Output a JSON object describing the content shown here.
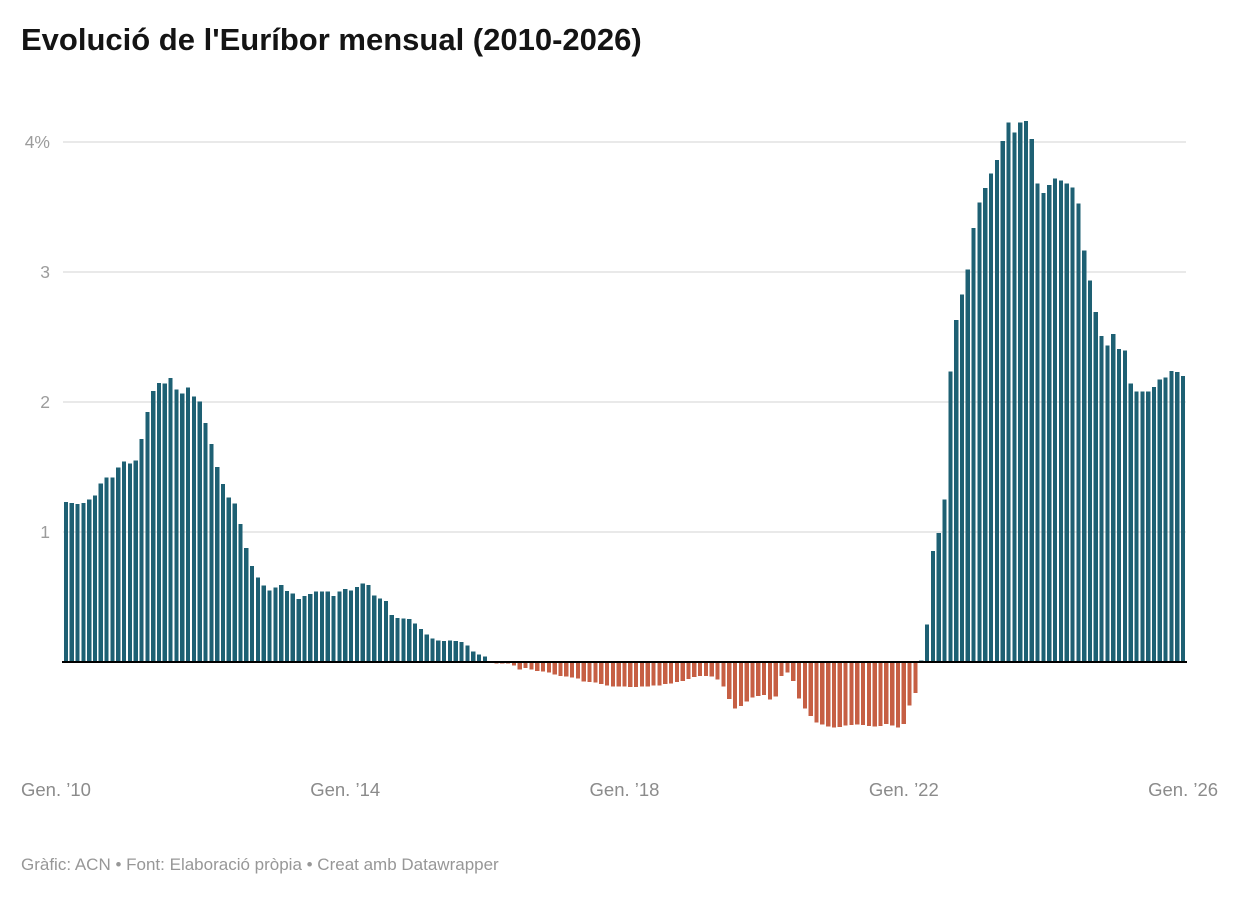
{
  "title": "Evolució de l'Euríbor mensual (2010-2026)",
  "footer": "Gràfic: ACN • Font: Elaboració pròpia • Creat amb Datawrapper",
  "chart_data": {
    "type": "bar",
    "title": "Evolució de l'Euríbor mensual (2010-2026)",
    "unit": "%",
    "xlabel": "",
    "ylabel": "",
    "x_start": "2010-01",
    "x_end": "2026-01",
    "months_per_bar": 1,
    "ylim": [
      -0.55,
      4.2
    ],
    "grid": true,
    "legend_position": "none",
    "y_ticks": [
      {
        "value": 4,
        "label": "4%"
      },
      {
        "value": 3,
        "label": "3"
      },
      {
        "value": 2,
        "label": "2"
      },
      {
        "value": 1,
        "label": "1"
      }
    ],
    "x_ticks": [
      {
        "month_index": 0,
        "label": "Gen. ’10",
        "align": "left"
      },
      {
        "month_index": 48,
        "label": "Gen. ’14",
        "align": "center"
      },
      {
        "month_index": 96,
        "label": "Gen. ’18",
        "align": "center"
      },
      {
        "month_index": 144,
        "label": "Gen. ’22",
        "align": "center"
      },
      {
        "month_index": 192,
        "label": "Gen. ’26",
        "align": "center"
      }
    ],
    "colors": {
      "positive_bar": "#1e6073",
      "negative_bar": "#c65f44",
      "gridline": "#e2e2e2",
      "baseline": "#000000",
      "y_tick_label": "#9c9c9c",
      "x_tick_label": "#8b8b8b",
      "title_text": "#141414",
      "footer_text": "#979797"
    },
    "series": [
      {
        "name": "Euríbor mensual (%)",
        "values": [
          1.232,
          1.225,
          1.215,
          1.225,
          1.249,
          1.281,
          1.373,
          1.421,
          1.42,
          1.495,
          1.541,
          1.526,
          1.55,
          1.714,
          1.924,
          2.086,
          2.147,
          2.144,
          2.183,
          2.097,
          2.067,
          2.11,
          2.044,
          2.004,
          1.837,
          1.678,
          1.499,
          1.368,
          1.266,
          1.219,
          1.061,
          0.877,
          0.74,
          0.65,
          0.588,
          0.549,
          0.575,
          0.594,
          0.545,
          0.528,
          0.484,
          0.507,
          0.525,
          0.542,
          0.543,
          0.541,
          0.506,
          0.543,
          0.562,
          0.549,
          0.577,
          0.604,
          0.592,
          0.513,
          0.488,
          0.469,
          0.362,
          0.338,
          0.335,
          0.329,
          0.298,
          0.255,
          0.212,
          0.18,
          0.165,
          0.163,
          0.167,
          0.161,
          0.154,
          0.128,
          0.079,
          0.059,
          0.042,
          -0.008,
          -0.012,
          -0.01,
          -0.013,
          -0.028,
          -0.056,
          -0.048,
          -0.057,
          -0.069,
          -0.074,
          -0.08,
          -0.095,
          -0.106,
          -0.11,
          -0.119,
          -0.127,
          -0.149,
          -0.154,
          -0.156,
          -0.168,
          -0.18,
          -0.189,
          -0.19,
          -0.189,
          -0.191,
          -0.191,
          -0.19,
          -0.188,
          -0.181,
          -0.18,
          -0.169,
          -0.166,
          -0.154,
          -0.147,
          -0.129,
          -0.116,
          -0.108,
          -0.109,
          -0.112,
          -0.134,
          -0.19,
          -0.283,
          -0.356,
          -0.339,
          -0.304,
          -0.272,
          -0.261,
          -0.253,
          -0.288,
          -0.266,
          -0.108,
          -0.081,
          -0.147,
          -0.279,
          -0.359,
          -0.415,
          -0.466,
          -0.481,
          -0.497,
          -0.505,
          -0.501,
          -0.487,
          -0.484,
          -0.481,
          -0.484,
          -0.491,
          -0.498,
          -0.492,
          -0.477,
          -0.487,
          -0.502,
          -0.477,
          -0.335,
          -0.237,
          0.013,
          0.287,
          0.852,
          0.992,
          1.249,
          2.233,
          2.629,
          2.828,
          3.018,
          3.337,
          3.534,
          3.647,
          3.757,
          3.862,
          4.007,
          4.149,
          4.073,
          4.149,
          4.16,
          4.022,
          3.679,
          3.609,
          3.671,
          3.718,
          3.703,
          3.68,
          3.65,
          3.526,
          3.166,
          2.936,
          2.691,
          2.506,
          2.436,
          2.525,
          2.407,
          2.398,
          2.143,
          2.081,
          2.081,
          2.079,
          2.114,
          2.172,
          2.187,
          2.24,
          2.23,
          2.2
        ]
      }
    ]
  }
}
